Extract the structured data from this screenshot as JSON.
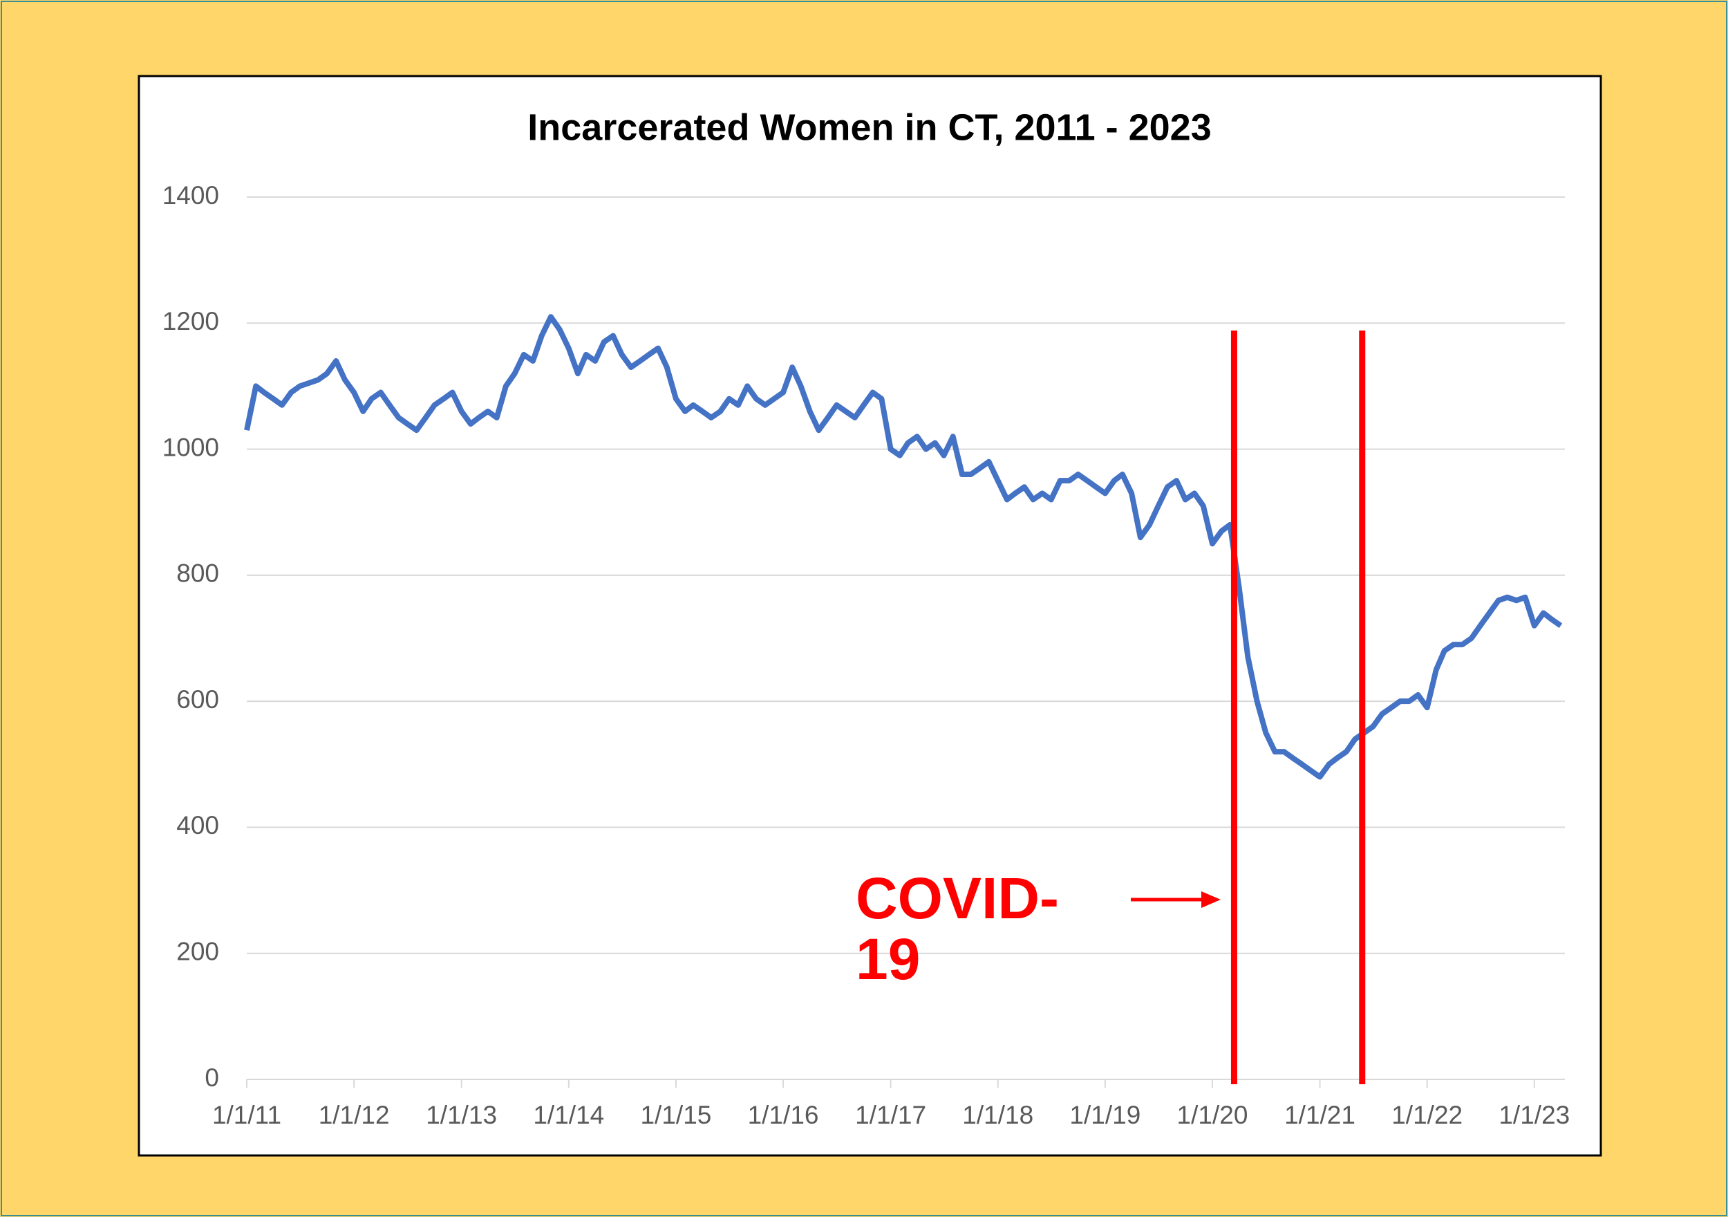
{
  "chart_data": {
    "type": "line",
    "title": "Incarcerated Women in CT, 2011 - 2023",
    "annotation": "COVID-19",
    "x": [
      "2011-01-01",
      "2011-02-01",
      "2011-03-01",
      "2011-04-01",
      "2011-05-01",
      "2011-06-01",
      "2011-07-01",
      "2011-08-01",
      "2011-09-01",
      "2011-10-01",
      "2011-11-01",
      "2011-12-01",
      "2012-01-01",
      "2012-02-01",
      "2012-03-01",
      "2012-04-01",
      "2012-05-01",
      "2012-06-01",
      "2012-07-01",
      "2012-08-01",
      "2012-09-01",
      "2012-10-01",
      "2012-11-01",
      "2012-12-01",
      "2013-01-01",
      "2013-02-01",
      "2013-03-01",
      "2013-04-01",
      "2013-05-01",
      "2013-06-01",
      "2013-07-01",
      "2013-08-01",
      "2013-09-01",
      "2013-10-01",
      "2013-11-01",
      "2013-12-01",
      "2014-01-01",
      "2014-02-01",
      "2014-03-01",
      "2014-04-01",
      "2014-05-01",
      "2014-06-01",
      "2014-07-01",
      "2014-08-01",
      "2014-09-01",
      "2014-10-01",
      "2014-11-01",
      "2014-12-01",
      "2015-01-01",
      "2015-02-01",
      "2015-03-01",
      "2015-04-01",
      "2015-05-01",
      "2015-06-01",
      "2015-07-01",
      "2015-08-01",
      "2015-09-01",
      "2015-10-01",
      "2015-11-01",
      "2015-12-01",
      "2016-01-01",
      "2016-02-01",
      "2016-03-01",
      "2016-04-01",
      "2016-05-01",
      "2016-06-01",
      "2016-07-01",
      "2016-08-01",
      "2016-09-01",
      "2016-10-01",
      "2016-11-01",
      "2016-12-01",
      "2017-01-01",
      "2017-02-01",
      "2017-03-01",
      "2017-04-01",
      "2017-05-01",
      "2017-06-01",
      "2017-07-01",
      "2017-08-01",
      "2017-09-01",
      "2017-10-01",
      "2017-11-01",
      "2017-12-01",
      "2018-01-01",
      "2018-02-01",
      "2018-03-01",
      "2018-04-01",
      "2018-05-01",
      "2018-06-01",
      "2018-07-01",
      "2018-08-01",
      "2018-09-01",
      "2018-10-01",
      "2018-11-01",
      "2018-12-01",
      "2019-01-01",
      "2019-02-01",
      "2019-03-01",
      "2019-04-01",
      "2019-05-01",
      "2019-06-01",
      "2019-07-01",
      "2019-08-01",
      "2019-09-01",
      "2019-10-01",
      "2019-11-01",
      "2019-12-01",
      "2020-01-01",
      "2020-02-01",
      "2020-03-01",
      "2020-04-01",
      "2020-05-01",
      "2020-06-01",
      "2020-07-01",
      "2020-08-01",
      "2020-09-01",
      "2020-10-01",
      "2020-11-01",
      "2020-12-01",
      "2021-01-01",
      "2021-02-01",
      "2021-03-01",
      "2021-04-01",
      "2021-05-01",
      "2021-06-01",
      "2021-07-01",
      "2021-08-01",
      "2021-09-01",
      "2021-10-01",
      "2021-11-01",
      "2021-12-01",
      "2022-01-01",
      "2022-02-01",
      "2022-03-01",
      "2022-04-01",
      "2022-05-01",
      "2022-06-01",
      "2022-07-01",
      "2022-08-01",
      "2022-09-01",
      "2022-10-01",
      "2022-11-01",
      "2022-12-01",
      "2023-01-01",
      "2023-02-01",
      "2023-03-01",
      "2023-04-01"
    ],
    "series": [
      {
        "name": "Incarcerated Women",
        "color": "#4472c4",
        "values": [
          1030,
          1100,
          1090,
          1080,
          1070,
          1090,
          1100,
          1105,
          1110,
          1120,
          1140,
          1110,
          1090,
          1060,
          1080,
          1090,
          1070,
          1050,
          1040,
          1030,
          1050,
          1070,
          1080,
          1090,
          1060,
          1040,
          1050,
          1060,
          1050,
          1100,
          1120,
          1150,
          1140,
          1180,
          1210,
          1190,
          1160,
          1120,
          1150,
          1140,
          1170,
          1180,
          1150,
          1130,
          1140,
          1150,
          1160,
          1130,
          1080,
          1060,
          1070,
          1060,
          1050,
          1060,
          1080,
          1070,
          1100,
          1080,
          1070,
          1080,
          1090,
          1130,
          1100,
          1060,
          1030,
          1050,
          1070,
          1060,
          1050,
          1070,
          1090,
          1080,
          1000,
          990,
          1010,
          1020,
          1000,
          1010,
          990,
          1020,
          960,
          960,
          970,
          980,
          950,
          920,
          930,
          940,
          920,
          930,
          920,
          950,
          950,
          960,
          950,
          940,
          930,
          950,
          960,
          930,
          860,
          880,
          910,
          940,
          950,
          920,
          930,
          910,
          850,
          870,
          880,
          780,
          670,
          600,
          550,
          520,
          520,
          510,
          500,
          490,
          480,
          500,
          510,
          520,
          540,
          550,
          560,
          580,
          590,
          600,
          600,
          610,
          590,
          650,
          680,
          690,
          690,
          700,
          720,
          740,
          760,
          765,
          760,
          765,
          720,
          740,
          730,
          720
        ]
      }
    ],
    "reference_lines": [
      {
        "x": "2020-03-15",
        "color": "#ff0000"
      },
      {
        "x": "2021-05-25",
        "color": "#ff0000"
      }
    ],
    "xlim": [
      "2011-01-01",
      "2023-04-15"
    ],
    "xticks": [
      {
        "value": "2011-01-01",
        "label": "1/1/11"
      },
      {
        "value": "2012-01-01",
        "label": "1/1/12"
      },
      {
        "value": "2013-01-01",
        "label": "1/1/13"
      },
      {
        "value": "2014-01-01",
        "label": "1/1/14"
      },
      {
        "value": "2015-01-01",
        "label": "1/1/15"
      },
      {
        "value": "2016-01-01",
        "label": "1/1/16"
      },
      {
        "value": "2017-01-01",
        "label": "1/1/17"
      },
      {
        "value": "2018-01-01",
        "label": "1/1/18"
      },
      {
        "value": "2019-01-01",
        "label": "1/1/19"
      },
      {
        "value": "2020-01-01",
        "label": "1/1/20"
      },
      {
        "value": "2021-01-01",
        "label": "1/1/21"
      },
      {
        "value": "2022-01-01",
        "label": "1/1/22"
      },
      {
        "value": "2023-01-01",
        "label": "1/1/23"
      }
    ],
    "ylim": [
      0,
      1400
    ],
    "yticks": [
      0,
      200,
      400,
      600,
      800,
      1000,
      1200,
      1400
    ],
    "grid": true
  }
}
